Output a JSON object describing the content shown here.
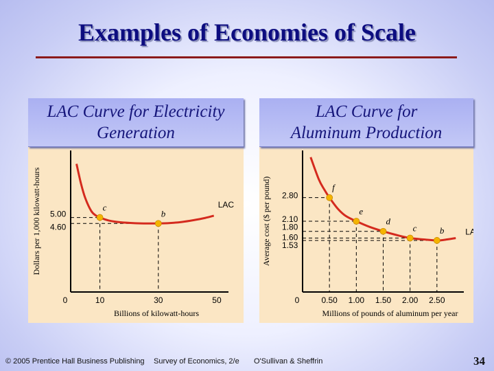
{
  "slide": {
    "title": "Examples of Economies of Scale",
    "page_number": "34",
    "footer": {
      "copyright": "© 2005 Prentice Hall Business Publishing",
      "book": "Survey of Economics, 2/e",
      "authors": "O'Sullivan & Sheffrin"
    },
    "colors": {
      "title": "#0d0d80",
      "rule": "#8b1a1a",
      "curve": "#d42a1e",
      "point": "#f5b400",
      "panel": "#fbe6c4",
      "header": "#b4baf4"
    }
  },
  "chart_data": [
    {
      "type": "line",
      "title_line1": "LAC Curve for Electricity",
      "title_line2": "Generation",
      "xlabel": "Billions of kilowatt-hours",
      "ylabel": "Dollars per 1,000 kilowatt-hours",
      "xlim": [
        0,
        54
      ],
      "ylim": [
        0,
        9.5
      ],
      "x_ticks": [
        0,
        10,
        30,
        50
      ],
      "x_tick_labels": [
        "0",
        "10",
        "30",
        "50"
      ],
      "y_ticks": [
        5.0,
        4.6
      ],
      "y_tick_labels": [
        "5.00",
        "4.60"
      ],
      "series": [
        {
          "name": "LAC",
          "x": [
            2,
            3.5,
            5,
            7,
            8.5,
            10,
            13,
            17,
            22,
            27,
            30,
            34,
            38,
            42,
            46,
            49
          ],
          "y": [
            8.6,
            7.3,
            6.3,
            5.45,
            5.15,
            5.0,
            4.8,
            4.68,
            4.62,
            4.6,
            4.6,
            4.63,
            4.7,
            4.82,
            4.97,
            5.12
          ]
        }
      ],
      "points": [
        {
          "label": "c",
          "x": 10,
          "y": 5.0
        },
        {
          "label": "b",
          "x": 30,
          "y": 4.6
        }
      ]
    },
    {
      "type": "line",
      "title_line1": "LAC Curve for",
      "title_line2": "Aluminum Production",
      "xlabel": "Millions of pounds of aluminum per year",
      "ylabel": "Average cost ($ per pound)",
      "xlim": [
        0,
        3.0
      ],
      "ylim": [
        0,
        4.2
      ],
      "x_ticks": [
        0,
        0.5,
        1.0,
        1.5,
        2.0,
        2.5
      ],
      "x_tick_labels": [
        "0",
        "0.50",
        "1.00",
        "1.50",
        "2.00",
        "2.50"
      ],
      "y_ticks": [
        2.8,
        2.1,
        1.8,
        1.6,
        1.53
      ],
      "y_tick_labels": [
        "2.80",
        "2.10",
        "1.80",
        "1.60",
        "1.53"
      ],
      "series": [
        {
          "name": "LAC",
          "x": [
            0.15,
            0.3,
            0.4,
            0.5,
            0.65,
            0.8,
            1.0,
            1.25,
            1.5,
            1.75,
            2.0,
            2.25,
            2.5,
            2.65,
            2.85
          ],
          "y": [
            4.0,
            3.35,
            3.05,
            2.8,
            2.48,
            2.26,
            2.1,
            1.93,
            1.8,
            1.69,
            1.6,
            1.56,
            1.53,
            1.55,
            1.6
          ]
        }
      ],
      "points": [
        {
          "label": "f",
          "x": 0.5,
          "y": 2.8
        },
        {
          "label": "e",
          "x": 1.0,
          "y": 2.1
        },
        {
          "label": "d",
          "x": 1.5,
          "y": 1.8
        },
        {
          "label": "c",
          "x": 2.0,
          "y": 1.6
        },
        {
          "label": "b",
          "x": 2.5,
          "y": 1.53
        }
      ]
    }
  ]
}
